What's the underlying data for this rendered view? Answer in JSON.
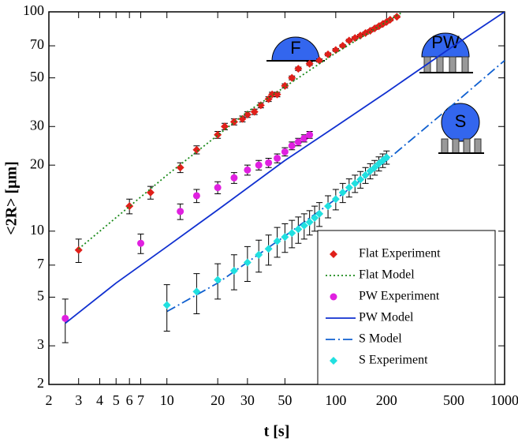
{
  "chart_data": {
    "type": "line",
    "x_label": "t [s]",
    "y_label": "<2R> [μm]",
    "x_log": true,
    "y_log": true,
    "xlim": [
      2,
      1000
    ],
    "ylim": [
      2,
      100
    ],
    "xticks": [
      2,
      3,
      4,
      5,
      6,
      7,
      10,
      20,
      30,
      50,
      100,
      200,
      500,
      1000
    ],
    "yticks": [
      2,
      3,
      5,
      7,
      10,
      20,
      30,
      50,
      70,
      100
    ],
    "legend": "lower right",
    "annotations": [
      "F",
      "PW",
      "S"
    ],
    "series": [
      {
        "name": "Flat Experiment",
        "color": "#e0201a",
        "marker": "diamond",
        "x": [
          3,
          6,
          8,
          12,
          15,
          20,
          22,
          25,
          28,
          30,
          33,
          36,
          40,
          42,
          45,
          50,
          55,
          60,
          70,
          80,
          90,
          100,
          110,
          120,
          130,
          140,
          150,
          160,
          170,
          180,
          190,
          200,
          210,
          230
        ],
        "values": [
          8.2,
          13,
          15,
          19.5,
          23.5,
          27.5,
          30,
          31.5,
          32.5,
          34,
          35,
          37.5,
          40,
          42,
          42,
          46,
          50,
          55,
          58,
          60,
          64,
          67,
          70,
          74,
          76,
          78,
          80,
          82,
          84,
          86,
          88,
          90,
          92,
          95
        ],
        "errors": [
          1,
          1,
          1,
          1,
          1,
          1,
          1,
          1,
          1,
          1,
          1,
          1,
          1,
          1,
          1,
          1,
          1,
          1,
          1,
          1,
          1,
          1,
          1,
          1,
          1,
          1,
          1,
          1,
          1,
          1,
          1,
          1,
          1,
          1
        ]
      },
      {
        "name": "Flat Model",
        "color": "#1a8a1a",
        "dash": "2 3",
        "x": [
          3,
          10,
          30,
          100,
          250
        ],
        "values": [
          8.3,
          18,
          35,
          65,
          100
        ]
      },
      {
        "name": "PW Experiment",
        "color": "#e020e0",
        "marker": "circle",
        "x": [
          2.5,
          7,
          12,
          15,
          20,
          25,
          30,
          35,
          40,
          45,
          50,
          55,
          60,
          65,
          70
        ],
        "values": [
          4,
          8.8,
          12.3,
          14.5,
          15.8,
          17.5,
          19,
          20,
          20.5,
          21.5,
          23,
          24.5,
          25.5,
          26.5,
          27.5
        ],
        "errors": [
          0.9,
          0.9,
          1,
          1,
          1,
          1,
          1,
          1,
          1,
          1,
          1,
          1,
          1,
          1,
          1
        ]
      },
      {
        "name": "PW Model",
        "color": "#1030d0",
        "dash": "none",
        "x": [
          2.5,
          5,
          10,
          20,
          50,
          100,
          200,
          500,
          1000
        ],
        "values": [
          3.8,
          5.8,
          8.5,
          12.5,
          21,
          30,
          43,
          70,
          100
        ]
      },
      {
        "name": "S Model",
        "color": "#1060d0",
        "dash": "12 4 2 4",
        "x": [
          10,
          20,
          50,
          100,
          200,
          500,
          1000
        ],
        "values": [
          4.3,
          5.8,
          9.5,
          14,
          21,
          38,
          60
        ]
      },
      {
        "name": "S Experiment",
        "color": "#20e0e0",
        "marker": "diamond",
        "x": [
          10,
          15,
          20,
          25,
          30,
          35,
          40,
          45,
          50,
          55,
          60,
          65,
          70,
          75,
          80,
          90,
          100,
          110,
          120,
          130,
          140,
          150,
          160,
          170,
          180,
          190,
          200
        ],
        "values": [
          4.6,
          5.3,
          6,
          6.6,
          7.2,
          7.8,
          8.3,
          9,
          9.4,
          9.8,
          10.2,
          10.6,
          11,
          11.5,
          12,
          13,
          14,
          15,
          15.8,
          16.5,
          17.2,
          18,
          18.8,
          19.5,
          20.3,
          21,
          21.7
        ],
        "errors": [
          1.1,
          1.1,
          1.1,
          1.2,
          1.3,
          1.3,
          1.3,
          1.4,
          1.4,
          1.4,
          1.4,
          1.4,
          1.4,
          1.5,
          1.5,
          1.5,
          1.5,
          1.5,
          1.5,
          1.5,
          1.5,
          1.5,
          1.5,
          1.5,
          1.5,
          1.5,
          1.5
        ]
      }
    ]
  }
}
